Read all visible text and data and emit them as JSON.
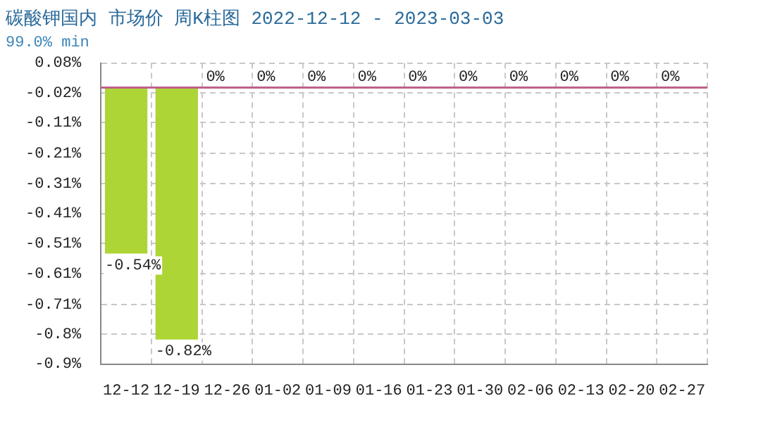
{
  "chart_data": {
    "type": "bar",
    "title": "碳酸钾国内 市场价 周K柱图 2022-12-12 - 2023-03-03",
    "subtitle": "99.0% min",
    "categories": [
      "12-12",
      "12-19",
      "12-26",
      "01-02",
      "01-09",
      "01-16",
      "01-23",
      "01-30",
      "02-06",
      "02-13",
      "02-20",
      "02-27"
    ],
    "values": [
      -0.54,
      -0.82,
      0,
      0,
      0,
      0,
      0,
      0,
      0,
      0,
      0,
      0
    ],
    "value_labels": [
      "-0.54%",
      "-0.82%",
      "0%",
      "0%",
      "0%",
      "0%",
      "0%",
      "0%",
      "0%",
      "0%",
      "0%",
      "0%"
    ],
    "color": "#add535",
    "ylim": [
      -0.9,
      0.08
    ],
    "yticks": [
      {
        "value": 0.08,
        "label": "0.08%"
      },
      {
        "value": -0.018,
        "label": "-0.02%"
      },
      {
        "value": -0.114,
        "label": "-0.11%"
      },
      {
        "value": -0.214,
        "label": "-0.21%"
      },
      {
        "value": -0.312,
        "label": "-0.31%"
      },
      {
        "value": -0.41,
        "label": "-0.41%"
      },
      {
        "value": -0.508,
        "label": "-0.51%"
      },
      {
        "value": -0.606,
        "label": "-0.61%"
      },
      {
        "value": -0.706,
        "label": "-0.71%"
      },
      {
        "value": -0.802,
        "label": "-0.8%"
      },
      {
        "value": -0.9,
        "label": "-0.9%"
      }
    ],
    "ref_lines": [
      {
        "axis": "y",
        "value": 0,
        "color": "#c0608a"
      }
    ],
    "grid": true,
    "legend": false
  }
}
